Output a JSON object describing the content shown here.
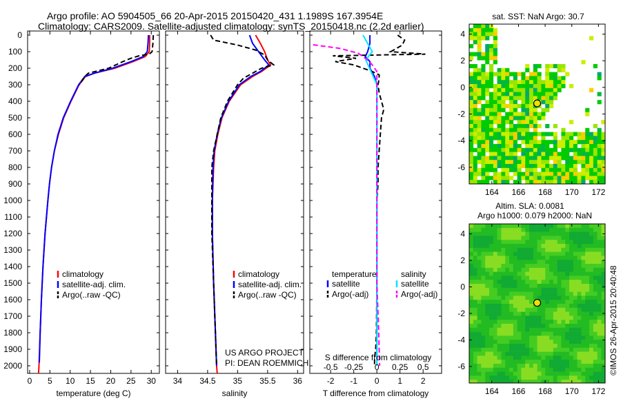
{
  "header": {
    "line1": "Argo profile: AO 5904505_66 20-Apr-2015 20150420_431 1.1989S 167.3954E",
    "line2": "Climatology: CARS2009. Satellite-adjusted climatology: synTS_20150418.nc (2.2d earlier)"
  },
  "credit": {
    "project": "US ARGO PROJECT",
    "pi": "PI: DEAN ROEMMICH"
  },
  "footer_stamp": "©IMOS 26-Apr-2015 20:40:48",
  "colors": {
    "climatology": "#ff0000",
    "satellite": "#0000ff",
    "argo": "#000000",
    "sal_satellite": "#00e5ff",
    "sal_argo": "#ff00ff"
  },
  "chart_data": [
    {
      "type": "line",
      "id": "temperature",
      "xlabel": "temperature (deg C)",
      "ylabel": "",
      "xlim": [
        -0.5,
        32
      ],
      "ylim": [
        2045,
        0
      ],
      "xticks": [
        "0",
        "5",
        "10",
        "15",
        "20",
        "25",
        "30"
      ],
      "yticks": [
        "0",
        "100",
        "200",
        "300",
        "400",
        "500",
        "600",
        "700",
        "800",
        "900",
        "1000",
        "1100",
        "1200",
        "1300",
        "1400",
        "1500",
        "1600",
        "1700",
        "1800",
        "1900",
        "2000"
      ],
      "legend": [
        "climatology",
        "satellite-adj. clim.",
        "Argo(..raw -QC)"
      ],
      "series": [
        {
          "name": "climatology",
          "depth": [
            0,
            50,
            100,
            130,
            160,
            200,
            230,
            250,
            300,
            400,
            500,
            600,
            700,
            800,
            900,
            1000,
            1200,
            1400,
            1600,
            1800,
            2000,
            2045
          ],
          "values": [
            29.6,
            29.6,
            29.5,
            28.5,
            25.5,
            21,
            16,
            13.8,
            12.2,
            10.2,
            8.4,
            7.1,
            6.1,
            5.4,
            4.9,
            4.5,
            3.8,
            3.3,
            2.9,
            2.6,
            2.3,
            2.2
          ]
        },
        {
          "name": "satellite-adj. clim.",
          "depth": [
            0,
            50,
            100,
            130,
            160,
            200,
            230,
            250,
            300,
            400,
            500,
            600,
            700,
            800,
            900,
            1000,
            1200,
            1400,
            1600,
            1800,
            1980
          ],
          "values": [
            29.3,
            29.2,
            29.0,
            28,
            25,
            20.5,
            16,
            13.6,
            12.1,
            10.1,
            8.3,
            7.0,
            6.1,
            5.4,
            4.9,
            4.5,
            3.8,
            3.3,
            2.9,
            2.6,
            2.4
          ]
        },
        {
          "name": "Argo(..raw -QC)",
          "depth": [
            0,
            50,
            100,
            115,
            125,
            140,
            160,
            200,
            230,
            250,
            300
          ],
          "values": [
            30.5,
            30.4,
            30.2,
            29.5,
            27,
            25,
            23,
            19.5,
            14.5,
            13.6,
            12.3
          ]
        }
      ]
    },
    {
      "type": "line",
      "id": "salinity",
      "xlabel": "salinity",
      "xlim": [
        33.8,
        36.1
      ],
      "ylim": [
        2045,
        0
      ],
      "xticks": [
        "34",
        "34.5",
        "35",
        "35.5",
        "36"
      ],
      "legend": [
        "climatology",
        "satellite-adj. clim.",
        "Argo(..raw -QC)"
      ],
      "series": [
        {
          "name": "climatology",
          "depth": [
            0,
            50,
            100,
            150,
            180,
            220,
            250,
            300,
            400,
            500,
            600,
            700,
            800,
            1000,
            1200,
            1500,
            1800,
            2000,
            2045
          ],
          "values": [
            35.3,
            35.38,
            35.45,
            35.5,
            35.55,
            35.4,
            35.25,
            35.05,
            34.86,
            34.74,
            34.67,
            34.62,
            34.6,
            34.58,
            34.58,
            34.6,
            34.63,
            34.65,
            34.66
          ]
        },
        {
          "name": "satellite-adj. clim.",
          "depth": [
            0,
            50,
            100,
            150,
            180,
            220,
            250,
            300,
            400,
            500,
            600,
            700,
            800,
            1000,
            1200,
            1500,
            1800,
            2000
          ],
          "values": [
            35.2,
            35.25,
            35.35,
            35.45,
            35.52,
            35.38,
            35.22,
            35.03,
            34.85,
            34.73,
            34.66,
            34.61,
            34.59,
            34.58,
            34.58,
            34.6,
            34.63,
            34.65
          ]
        },
        {
          "name": "Argo(..raw -QC)",
          "depth": [
            0,
            30,
            60,
            90,
            120,
            150,
            180,
            200,
            230,
            260,
            300,
            400,
            500,
            600,
            700,
            800,
            1000,
            1200,
            1500,
            1800,
            2000
          ],
          "values": [
            34.55,
            34.6,
            35.0,
            35.3,
            35.45,
            35.5,
            35.6,
            35.4,
            35.25,
            35.1,
            35.0,
            34.83,
            34.72,
            34.66,
            34.6,
            34.57,
            34.57,
            34.57,
            34.6,
            34.63,
            34.65
          ]
        }
      ]
    },
    {
      "type": "line",
      "id": "difference",
      "xlabel": "T difference from climatology",
      "x2label": "S difference from climatology",
      "xlim": [
        -2.9,
        2.8
      ],
      "ylim": [
        2045,
        0
      ],
      "xticks": [
        "-2",
        "-1",
        "0",
        "1",
        "2"
      ],
      "x2ticks": [
        "-0.5",
        "-0.25",
        "0",
        "0.25",
        "0.5"
      ],
      "legend_titles": [
        "temperature",
        "salinity"
      ],
      "legend": [
        "satellite",
        "Argo(-adj)",
        "satellite",
        "Argo(-adj)"
      ],
      "series": [
        {
          "name": "T satellite",
          "depth": [
            0,
            50,
            100,
            130,
            160,
            200,
            250,
            300,
            500,
            800,
            1000,
            1500,
            1980
          ],
          "values": [
            -0.3,
            -0.3,
            -0.4,
            -0.5,
            -0.3,
            -0.3,
            -0.1,
            0,
            0,
            0,
            0,
            0,
            0
          ]
        },
        {
          "name": "T Argo(-adj)",
          "depth": [
            0,
            30,
            60,
            100,
            115,
            125,
            140,
            160,
            180,
            200,
            220,
            240,
            260,
            300,
            350,
            400,
            450,
            500,
            600,
            700,
            800,
            900,
            1000,
            1200,
            1500,
            1800,
            1900,
            1950,
            2000
          ],
          "values": [
            0.9,
            1.2,
            1.1,
            0.6,
            2.1,
            -1.9,
            -0.9,
            -1.8,
            -1.0,
            -0.6,
            -0.2,
            0.1,
            0.1,
            0.05,
            0.1,
            0.2,
            0.3,
            0.2,
            0.15,
            0.1,
            0.05,
            0.05,
            0.0,
            0.0,
            0.0,
            -0.02,
            -0.05,
            -0.1,
            -0.1
          ]
        },
        {
          "name": "S satellite",
          "depth": [
            0,
            50,
            100,
            150,
            200,
            300,
            500,
            1000,
            1500,
            2000
          ],
          "values": [
            -0.15,
            -0.1,
            -0.05,
            -0.12,
            -0.08,
            0,
            0,
            0,
            0,
            0
          ]
        },
        {
          "name": "S Argo(-adj)",
          "depth": [
            0,
            50,
            80,
            110,
            150,
            180,
            220,
            300,
            500,
            1000,
            1500,
            1800,
            2000
          ],
          "values": [
            -0.9,
            -0.8,
            -0.4,
            -0.2,
            -0.1,
            -0.05,
            0,
            0,
            0,
            0,
            0,
            0.02,
            0.03
          ]
        }
      ]
    },
    {
      "type": "heatmap",
      "id": "sst-map",
      "title": "sat. SST: NaN Argo: 30.7",
      "xlim": [
        162.3,
        172.5
      ],
      "ylim": [
        -7.25,
        4.75
      ],
      "xticks": [
        "164",
        "166",
        "168",
        "170",
        "172"
      ],
      "yticks": [
        "4",
        "2",
        "0",
        "-2",
        "-4",
        "-6"
      ],
      "argo_position": [
        167.4,
        -1.2
      ]
    },
    {
      "type": "heatmap",
      "id": "sla-map",
      "title": "Altim. SLA: 0.0081",
      "subtitle": "Argo h1000: 0.079 h2000: NaN",
      "xlim": [
        162.3,
        172.5
      ],
      "ylim": [
        -7.25,
        4.75
      ],
      "xticks": [
        "164",
        "166",
        "168",
        "170",
        "172"
      ],
      "yticks": [
        "4",
        "2",
        "0",
        "-2",
        "-4",
        "-6"
      ],
      "argo_position": [
        167.4,
        -1.2
      ]
    }
  ]
}
